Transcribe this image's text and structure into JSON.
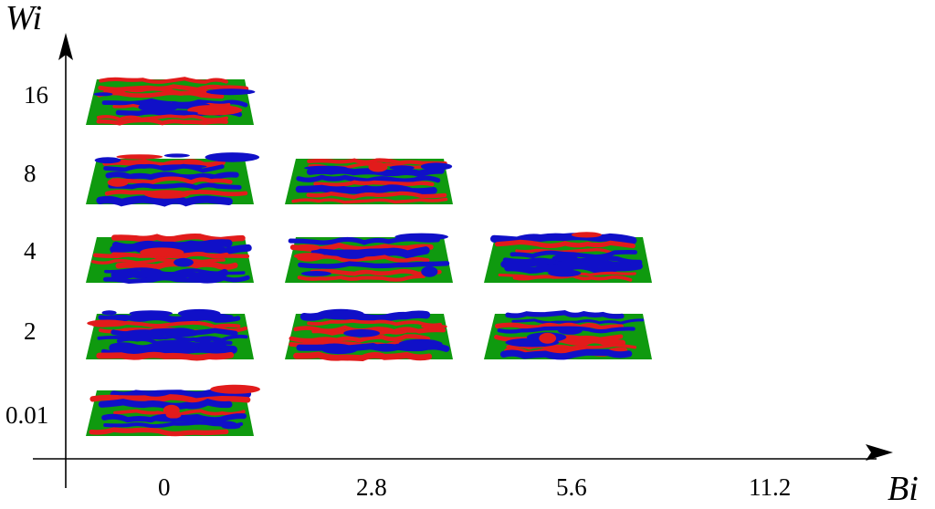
{
  "axes": {
    "x_title": "Bi",
    "y_title": "Wi",
    "x_ticks": [
      "0",
      "2.8",
      "5.6",
      "11.2"
    ],
    "y_ticks": [
      "16",
      "8",
      "4",
      "2",
      "0.01"
    ]
  },
  "colors": {
    "plane": "#0f9a0f",
    "structure_positive": "#e21b1b",
    "structure_negative": "#1010c8",
    "axis": "#000000"
  },
  "panels": [
    {
      "wi": "16",
      "bi": "0"
    },
    {
      "wi": "8",
      "bi": "0"
    },
    {
      "wi": "8",
      "bi": "2.8"
    },
    {
      "wi": "4",
      "bi": "0"
    },
    {
      "wi": "4",
      "bi": "2.8"
    },
    {
      "wi": "4",
      "bi": "5.6"
    },
    {
      "wi": "2",
      "bi": "0"
    },
    {
      "wi": "2",
      "bi": "2.8"
    },
    {
      "wi": "2",
      "bi": "5.6"
    },
    {
      "wi": "0.01",
      "bi": "0"
    }
  ]
}
